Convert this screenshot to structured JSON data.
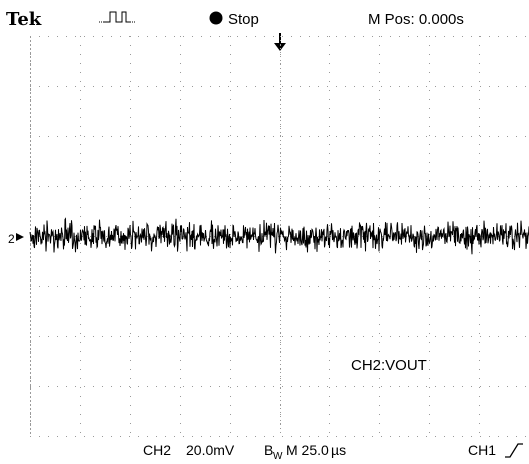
{
  "header": {
    "brand": "Tek",
    "trigger_icon": "pulse-trigger-icon",
    "run_state": "Stop",
    "position": "M Pos: 0.000s"
  },
  "screen": {
    "channel_marker": "2",
    "trace_label": "CH2:VOUT",
    "colors": {
      "trace": "#000000",
      "grid": "#9a9a9a",
      "background": "#ffffff"
    }
  },
  "footer": {
    "channel": "CH2",
    "volts_per_div": "20.0mV",
    "bandwidth_limit": "B",
    "bandwidth_marker": "W",
    "timebase": "M 25.0",
    "time_unit": "µs",
    "trigger_source": "CH1",
    "trigger_slope": "rising-edge-icon"
  },
  "chart_data": {
    "type": "line",
    "title": "",
    "xlabel": "",
    "ylabel": "",
    "x_divisions": 10,
    "y_divisions": 8,
    "time_per_div": "25.0µs",
    "volts_per_div": "20.0mV",
    "xlim": [
      -125,
      125
    ],
    "ylim": [
      -80,
      80
    ],
    "grid": true,
    "series": [
      {
        "name": "CH2:VOUT",
        "waveform": "noise",
        "mean": 0,
        "peak_to_peak": 16
      }
    ]
  }
}
